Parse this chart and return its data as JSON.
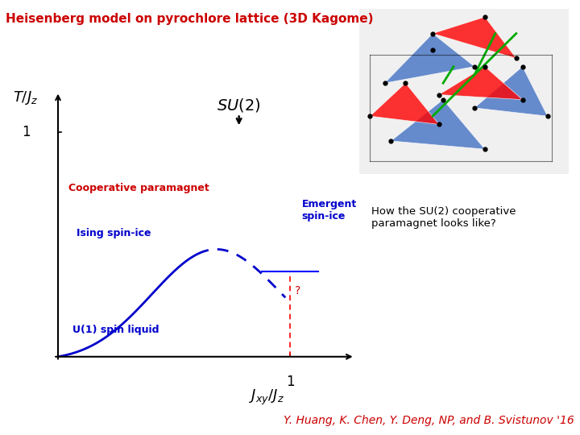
{
  "title": "Heisenberg model on pyrochlore lattice (3D Kagome)",
  "title_color": "#cc0000",
  "title_fontsize": 11,
  "background_color": "#ffffff",
  "axis_xlabel_latex": "$J_{xy} / J_z$",
  "axis_ylabel_latex": "$T / J_z$",
  "tick_label_1": "1",
  "label_cooperative": "Cooperative paramagnet",
  "label_ising": "Ising spin-ice",
  "label_emergent": "Emergent\nspin-ice",
  "label_u1": "U(1) spin liquid",
  "label_su2": "$SU(2)$",
  "label_question": "?",
  "label_how": "How the SU(2) cooperative\nparamagnet looks like?",
  "citation": "Y. Huang, K. Chen, Y. Deng, NP, and B. Svistunov '16",
  "citation_color": "#cc0000",
  "citation_fontsize": 10,
  "label_color_red": "#cc0000",
  "label_color_blue": "#0000cc",
  "label_color_black": "#000000",
  "curve_color": "#0000cc",
  "dashed_color": "#0000cc",
  "xlim": [
    0,
    1.3
  ],
  "ylim": [
    0,
    1.2
  ],
  "xmark": 1.0,
  "ymark": 1.0
}
